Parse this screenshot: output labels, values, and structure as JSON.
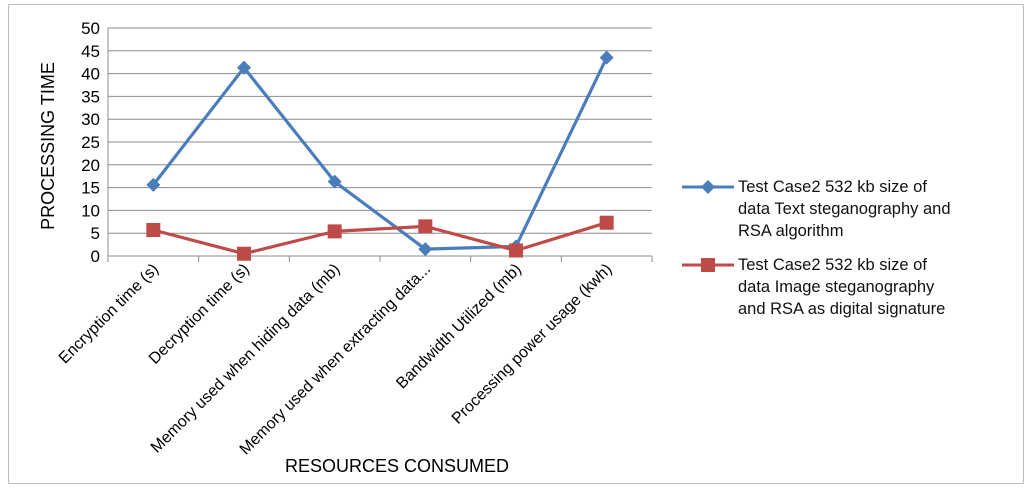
{
  "chart_data": {
    "type": "line",
    "title": "",
    "xlabel": "RESOURCES CONSUMED",
    "ylabel": "PROCESSING TIME",
    "ylim": [
      0,
      50
    ],
    "yticks": [
      "0",
      "5",
      "10",
      "15",
      "20",
      "25",
      "30",
      "35",
      "40",
      "45",
      "50"
    ],
    "grid": true,
    "legend_position": "right",
    "categories": [
      "Encryption time (s)",
      "Decryption time (s)",
      "Memory used when hiding data (mb)",
      "Memory used when extracting data...",
      "Bandwidth Utilized (mb)",
      "Processing power usage (kwh)"
    ],
    "series": [
      {
        "name": "Test Case2 532 kb size of data Text steganography and RSA algorithm",
        "name_lines": [
          "Test Case2 532 kb size of",
          "data Text steganography and",
          "RSA algorithm"
        ],
        "values": [
          15.6,
          41.3,
          16.3,
          1.5,
          2.1,
          43.5
        ],
        "color": "#4a7ebb",
        "marker": "diamond"
      },
      {
        "name": "Test Case2 532 kb size of data Image steganography and RSA as digital signature",
        "name_lines": [
          "Test Case2 532 kb size of",
          "data Image steganography",
          "and RSA as digital signature"
        ],
        "values": [
          5.7,
          0.5,
          5.4,
          6.5,
          1.2,
          7.3
        ],
        "color": "#be4b48",
        "marker": "square"
      }
    ]
  }
}
